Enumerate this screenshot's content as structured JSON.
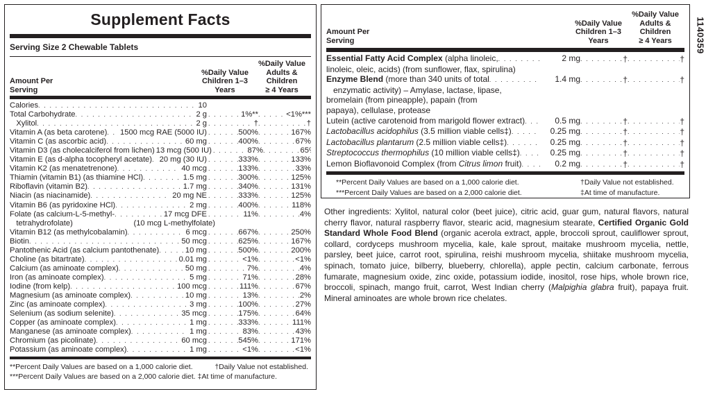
{
  "left_panel": {
    "title": "Supplement Facts",
    "serving_size": "Serving Size 2 Chewable Tablets",
    "headers": {
      "amount_per_serving": "Amount Per\nServing",
      "dv_children": "%Daily Value\nChildren 1–3\nYears",
      "dv_adults": "%Daily Value\nAdults & Children\n≥ 4 Years"
    },
    "rows": [
      {
        "label": "Calories",
        "amount": "10",
        "dv1": "",
        "dv2": ""
      },
      {
        "label": "Total Carbohydrate",
        "amount": "2 g",
        "dv1": "1%**",
        "dv2": "<1%***"
      },
      {
        "label": "  Xylitol",
        "amount": "2 g",
        "dv1": "†",
        "dv2": "†"
      },
      {
        "label": "Vitamin A (as beta carotene)",
        "amount": "1500 mcg RAE (5000 IU)",
        "dv1": "500%",
        "dv2": "167%"
      },
      {
        "label": "Vitamin C (as ascorbic acid)",
        "amount": "60 mg",
        "dv1": "400%",
        "dv2": "67%"
      },
      {
        "label": "Vitamin D3 (as cholecalciferol from lichen)",
        "amount": "13 mcg (500 IU)",
        "dv1": "87%",
        "dv2": "65%"
      },
      {
        "label": "Vitamin E (as d-alpha tocopheryl acetate)",
        "amount": "20 mg (30 IU)",
        "dv1": "333%",
        "dv2": "133%"
      },
      {
        "label": "Vitamin K2 (as menatetrenone)",
        "amount": "40 mcg",
        "dv1": "133%",
        "dv2": "33%"
      },
      {
        "label": "Thiamin (vitamin B1) (as thiamine HCl)",
        "amount": "1.5 mg",
        "dv1": "300%",
        "dv2": "125%"
      },
      {
        "label": "Riboflavin (vitamin B2)",
        "amount": "1.7 mg",
        "dv1": "340%",
        "dv2": "131%"
      },
      {
        "label": "Niacin (as niacinamide)",
        "amount": "20 mg NE",
        "dv1": "333%",
        "dv2": "125%"
      },
      {
        "label": "Vitamin B6 (as pyridoxine HCl)",
        "amount": "2 mg",
        "dv1": "400%",
        "dv2": "118%"
      },
      {
        "label": "Folate (as calcium-L-5-methyl-",
        "amount": "17 mcg DFE",
        "dv1": "11%",
        "dv2": "4%"
      },
      {
        "label": "  tetrahydrofolate)",
        "amount": "(10 mcg L-methylfolate)",
        "dv1": "",
        "dv2": "",
        "nodots": true
      },
      {
        "label": "Vitamin B12 (as methylcobalamin)",
        "amount": "6 mcg",
        "dv1": "667%",
        "dv2": "250%"
      },
      {
        "label": "Biotin",
        "amount": "50 mcg",
        "dv1": "625%",
        "dv2": "167%"
      },
      {
        "label": "Pantothenic Acid (as calcium pantothenate)",
        "amount": "10 mg",
        "dv1": "500%",
        "dv2": "200%"
      },
      {
        "label": "Choline (as bitartrate)",
        "amount": "0.01 mg",
        "dv1": "<1%",
        "dv2": "<1%"
      },
      {
        "label": "Calcium (as aminoate complex)",
        "amount": "50 mg",
        "dv1": "7%",
        "dv2": "4%"
      },
      {
        "label": "Iron (as aminoate complex)",
        "amount": "5 mg",
        "dv1": "71%",
        "dv2": "28%"
      },
      {
        "label": "Iodine (from kelp)",
        "amount": "100 mcg",
        "dv1": "111%",
        "dv2": "67%"
      },
      {
        "label": "Magnesium (as aminoate complex)",
        "amount": "10 mg",
        "dv1": "13%",
        "dv2": "2%"
      },
      {
        "label": "Zinc (as aminoate complex)",
        "amount": "3 mg",
        "dv1": "100%",
        "dv2": "27%"
      },
      {
        "label": "Selenium (as sodium selenite)",
        "amount": "35 mcg",
        "dv1": "175%",
        "dv2": "64%"
      },
      {
        "label": "Copper (as aminoate complex)",
        "amount": "1 mg",
        "dv1": "333%",
        "dv2": "111%"
      },
      {
        "label": "Manganese (as aminoate complex)",
        "amount": "1 mg",
        "dv1": "83%",
        "dv2": "43%"
      },
      {
        "label": "Chromium (as picolinate)",
        "amount": "60 mcg",
        "dv1": "545%",
        "dv2": "171%"
      },
      {
        "label": "Potassium (as aminoate complex)",
        "amount": "1 mg",
        "dv1": "<1%",
        "dv2": "<1%"
      }
    ],
    "footnotes": {
      "line1_left": "**Percent Daily Values are based on a 1,000 calorie diet.",
      "line1_right": "†Daily Value not established.",
      "line2_left": "***Percent Daily Values are based on a 2,000 calorie diet.",
      "line2_right": "‡At time of manufacture."
    }
  },
  "right_panel": {
    "headers": {
      "amount_per_serving": "Amount Per\nServing",
      "dv_children": "%Daily Value\nChildren 1–3\nYears",
      "dv_adults": "%Daily Value\nAdults & Children\n≥ 4 Years"
    },
    "rows": [
      {
        "label": "Essential Fatty Acid Complex",
        "bold": true,
        "desc": " (alpha linoleic,",
        "amount": "2 mg",
        "dv1": "†",
        "dv2": "†"
      },
      {
        "label": "",
        "desc": "linoleic, oleic, acids) (from sunflower, flax, spirulina)",
        "amount": "",
        "dv1": "",
        "dv2": "",
        "cont": true
      },
      {
        "label": "Enzyme Blend",
        "bold": true,
        "desc": " (more than 340 units of total",
        "amount": "1.4 mg",
        "dv1": "†",
        "dv2": "†"
      },
      {
        "label": "",
        "desc": "  enzymatic activity) – Amylase, lactase, lipase,",
        "amount": "",
        "dv1": "",
        "dv2": "",
        "cont": true
      },
      {
        "label": "",
        "desc": "bromelain (from pineapple), papain (from",
        "amount": "",
        "dv1": "",
        "dv2": "",
        "cont": true
      },
      {
        "label": "",
        "desc": "papaya), cellulase, protease",
        "amount": "",
        "dv1": "",
        "dv2": "",
        "cont": true
      },
      {
        "label": "",
        "desc": "Lutein (active carotenoid from marigold flower extract)",
        "amount": "0.5 mg",
        "dv1": "†",
        "dv2": "†"
      },
      {
        "label": "",
        "italic": "Lactobacillus acidophilus",
        "desc": " (3.5 million viable cells‡)",
        "amount": "0.25 mg",
        "dv1": "†",
        "dv2": "†"
      },
      {
        "label": "",
        "italic": "Lactobacillus plantarum",
        "desc": " (2.5 million viable cells‡)",
        "amount": "0.25 mg",
        "dv1": "†",
        "dv2": "†"
      },
      {
        "label": "",
        "italic": "Streptococcus thermophilus",
        "desc": " (10 million viable cells‡)",
        "amount": "0.25 mg",
        "dv1": "†",
        "dv2": "†"
      },
      {
        "label": "",
        "desc": "Lemon Bioflavonoid Complex (from ",
        "italic_tail": "Citrus limon",
        "desc_tail": " fruit)",
        "amount": "0.2 mg",
        "dv1": "†",
        "dv2": "†"
      }
    ],
    "footnotes": {
      "line1_left": "**Percent Daily Values are based on a 1,000 calorie diet.",
      "line1_right": "†Daily Value not established.",
      "line2_left": "***Percent Daily Values are based on a 2,000 calorie diet.",
      "line2_right": "‡At time of manufacture."
    }
  },
  "other_ingredients": {
    "part1": "Other ingredients: Xylitol, natural color (beet juice), citric acid, guar gum, natural flavors, natural cherry flavor, natural raspberry flavor, stearic acid, magnesium stearate, ",
    "bold": "Certified Organic Gold Standard Whole Food Blend",
    "part2": " (organic acerola extract, apple, broccoli sprout, cauliflower sprout, collard, cordyceps mushroom mycelia, kale, kale sprout, maitake mushroom mycelia, nettle, parsley, beet juice, carrot root, spirulina, reishi mushroom mycelia, shiitake mushroom mycelia, spinach, tomato juice, bilberry, blueberry, chlorella), apple pectin, calcium carbonate, ferrous fumarate, magnesium oxide, zinc oxide, potassium iodide, inositol, rose hips, whole brown rice, broccoli, spinach, mango fruit, carrot, West Indian cherry (",
    "italic": "Malpighia glabra",
    "part3": " fruit), papaya fruit. Mineral aminoates are whole brown rice chelates."
  },
  "product_code": "1140359"
}
